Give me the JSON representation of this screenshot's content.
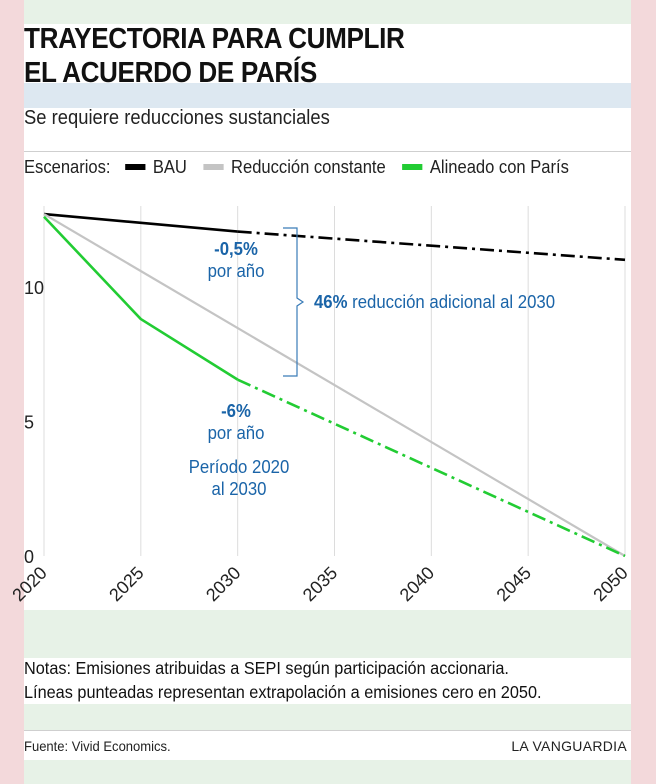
{
  "title": "TRAYECTORIA PARA CUMPLIR\nEL ACUERDO DE PARÍS",
  "subtitle": "Se requiere reducciones sustanciales",
  "legend": {
    "label": "Escenarios:",
    "items": [
      {
        "name": "BAU",
        "color": "#000000"
      },
      {
        "name": "Reducción constante",
        "color": "#c4c4c4"
      },
      {
        "name": "Alineado con París",
        "color": "#22cc33"
      }
    ]
  },
  "annotations": {
    "bau_rate_value": "-0,5%",
    "bau_rate_unit": "por año",
    "gap_value": "46%",
    "gap_text": " reducción adicional al 2030",
    "paris_rate_value": "-6%",
    "paris_rate_unit": "por año",
    "period_line1": "Período 2020",
    "period_line2": "al 2030"
  },
  "notes": [
    "Notas: Emisiones atribuidas a SEPI según participación accionaria.",
    "Líneas punteadas representan extrapolación a emisiones cero en 2050."
  ],
  "source": "Fuente: Vivid Economics.",
  "brand": "LA VANGUARDIA",
  "colors": {
    "background": "#f3d9db",
    "band_green": "#e7f2e7",
    "band_blue": "#dde8f1",
    "annotation": "#1a64a8"
  },
  "chart_data": {
    "type": "line",
    "xlim": [
      2020,
      2050
    ],
    "ylim": [
      0,
      13
    ],
    "x_ticks": [
      2020,
      2025,
      2030,
      2035,
      2040,
      2045,
      2050
    ],
    "y_ticks": [
      0,
      5,
      10
    ],
    "grid": "vertical",
    "series": [
      {
        "name": "BAU",
        "color": "#000000",
        "solid": [
          [
            2020,
            12.7
          ],
          [
            2030,
            12.05
          ]
        ],
        "dashed": [
          [
            2030,
            12.05
          ],
          [
            2050,
            11.0
          ]
        ]
      },
      {
        "name": "Reducción constante",
        "color": "#c4c4c4",
        "solid": [
          [
            2020,
            12.7
          ],
          [
            2050,
            0
          ]
        ],
        "dashed": []
      },
      {
        "name": "Alineado con París",
        "color": "#22cc33",
        "solid": [
          [
            2020,
            12.6
          ],
          [
            2025,
            8.8
          ],
          [
            2030,
            6.55
          ]
        ],
        "dashed": [
          [
            2030,
            6.55
          ],
          [
            2050,
            0
          ]
        ]
      }
    ]
  }
}
